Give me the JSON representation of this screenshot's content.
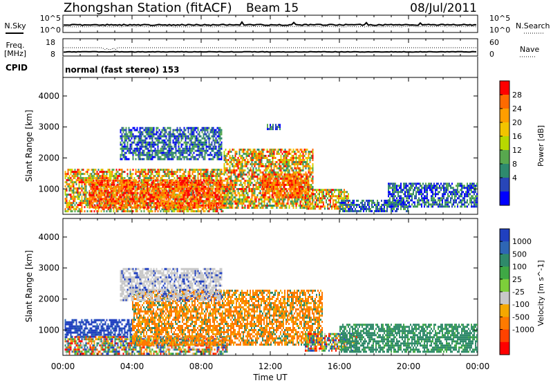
{
  "header": {
    "title": "Zhongshan Station (fitACF)",
    "beam": "Beam 15",
    "date": "08/Jul/2011"
  },
  "top_panel": {
    "left_label": "N.Sky",
    "left_ticks": [
      "10^5",
      "10^0"
    ],
    "right_label": "N.Search",
    "right_ticks": [
      "10^5",
      "10^0"
    ]
  },
  "freq_panel": {
    "left_label_1": "Freq.",
    "left_label_2": "[MHz]",
    "left_ticks": [
      "18",
      "8"
    ],
    "right_label": "Nave",
    "right_ticks": [
      "60",
      "0"
    ]
  },
  "cpid": {
    "label": "CPID",
    "text": "normal (fast stereo) 153"
  },
  "x_axis": {
    "label": "Time UT",
    "ticks": [
      "00:00",
      "04:00",
      "08:00",
      "12:00",
      "16:00",
      "20:00",
      "00:00"
    ]
  },
  "chart_data": [
    {
      "type": "heatmap",
      "title": "",
      "ylabel": "Slant Range [km]",
      "xlabel": "",
      "xlim": [
        0,
        24
      ],
      "ylim": [
        180,
        4600
      ],
      "yticks": [
        "4000",
        "3000",
        "2000",
        "1000"
      ],
      "colorbar": {
        "label": "Power [dB]",
        "ticks": [
          "28",
          "24",
          "20",
          "16",
          "12",
          "8",
          "4"
        ],
        "colors": [
          "#ff0000",
          "#ff6a00",
          "#ff9e00",
          "#f2c400",
          "#b8d800",
          "#58a84e",
          "#2e8a6e",
          "#2846b8",
          "#0000ff"
        ]
      },
      "regions": [
        {
          "t": [
            0.1,
            9.3
          ],
          "r": [
            300,
            1650
          ],
          "level": "mid"
        },
        {
          "t": [
            1.5,
            9.8
          ],
          "r": [
            400,
            1300
          ],
          "level": "high"
        },
        {
          "t": [
            9.3,
            14.5
          ],
          "r": [
            400,
            2300
          ],
          "level": "mid"
        },
        {
          "t": [
            11.5,
            14.2
          ],
          "r": [
            700,
            1500
          ],
          "level": "high"
        },
        {
          "t": [
            14.0,
            16.5
          ],
          "r": [
            350,
            1000
          ],
          "level": "mid"
        },
        {
          "t": [
            16.0,
            20.0
          ],
          "r": [
            300,
            650
          ],
          "level": "low"
        },
        {
          "t": [
            18.8,
            24.0
          ],
          "r": [
            400,
            1200
          ],
          "level": "low"
        },
        {
          "t": [
            3.3,
            9.2
          ],
          "r": [
            1950,
            3000
          ],
          "level": "low"
        },
        {
          "t": [
            11.8,
            12.6
          ],
          "r": [
            2900,
            3100
          ],
          "level": "low"
        }
      ]
    },
    {
      "type": "heatmap",
      "title": "",
      "ylabel": "Slant Range [km]",
      "xlabel": "Time UT",
      "xlim": [
        0,
        24
      ],
      "ylim": [
        180,
        4600
      ],
      "yticks": [
        "4000",
        "3000",
        "2000",
        "1000"
      ],
      "colorbar": {
        "label": "Velocity [m s^-1]",
        "ticks": [
          "1000",
          "500",
          "100",
          "25",
          "-25",
          "-100",
          "-500",
          "-1000"
        ],
        "colors": [
          "#2040c0",
          "#2e66b4",
          "#2f8a6a",
          "#3fa845",
          "#7dcf3a",
          "#c8c8c8",
          "#f5a800",
          "#ff7a00",
          "#ff4200",
          "#ff0000"
        ]
      },
      "regions": [
        {
          "t": [
            0.1,
            4.0
          ],
          "r": [
            800,
            1350
          ],
          "kind": "positive"
        },
        {
          "t": [
            0.1,
            9.5
          ],
          "r": [
            250,
            800
          ],
          "kind": "mixed"
        },
        {
          "t": [
            4.0,
            15.0
          ],
          "r": [
            500,
            2300
          ],
          "kind": "negative"
        },
        {
          "t": [
            14.0,
            17.0
          ],
          "r": [
            300,
            900
          ],
          "kind": "mixed"
        },
        {
          "t": [
            16.0,
            24.0
          ],
          "r": [
            300,
            1200
          ],
          "kind": "slow"
        },
        {
          "t": [
            3.3,
            9.2
          ],
          "r": [
            1950,
            3000
          ],
          "kind": "near-zero"
        }
      ]
    }
  ]
}
